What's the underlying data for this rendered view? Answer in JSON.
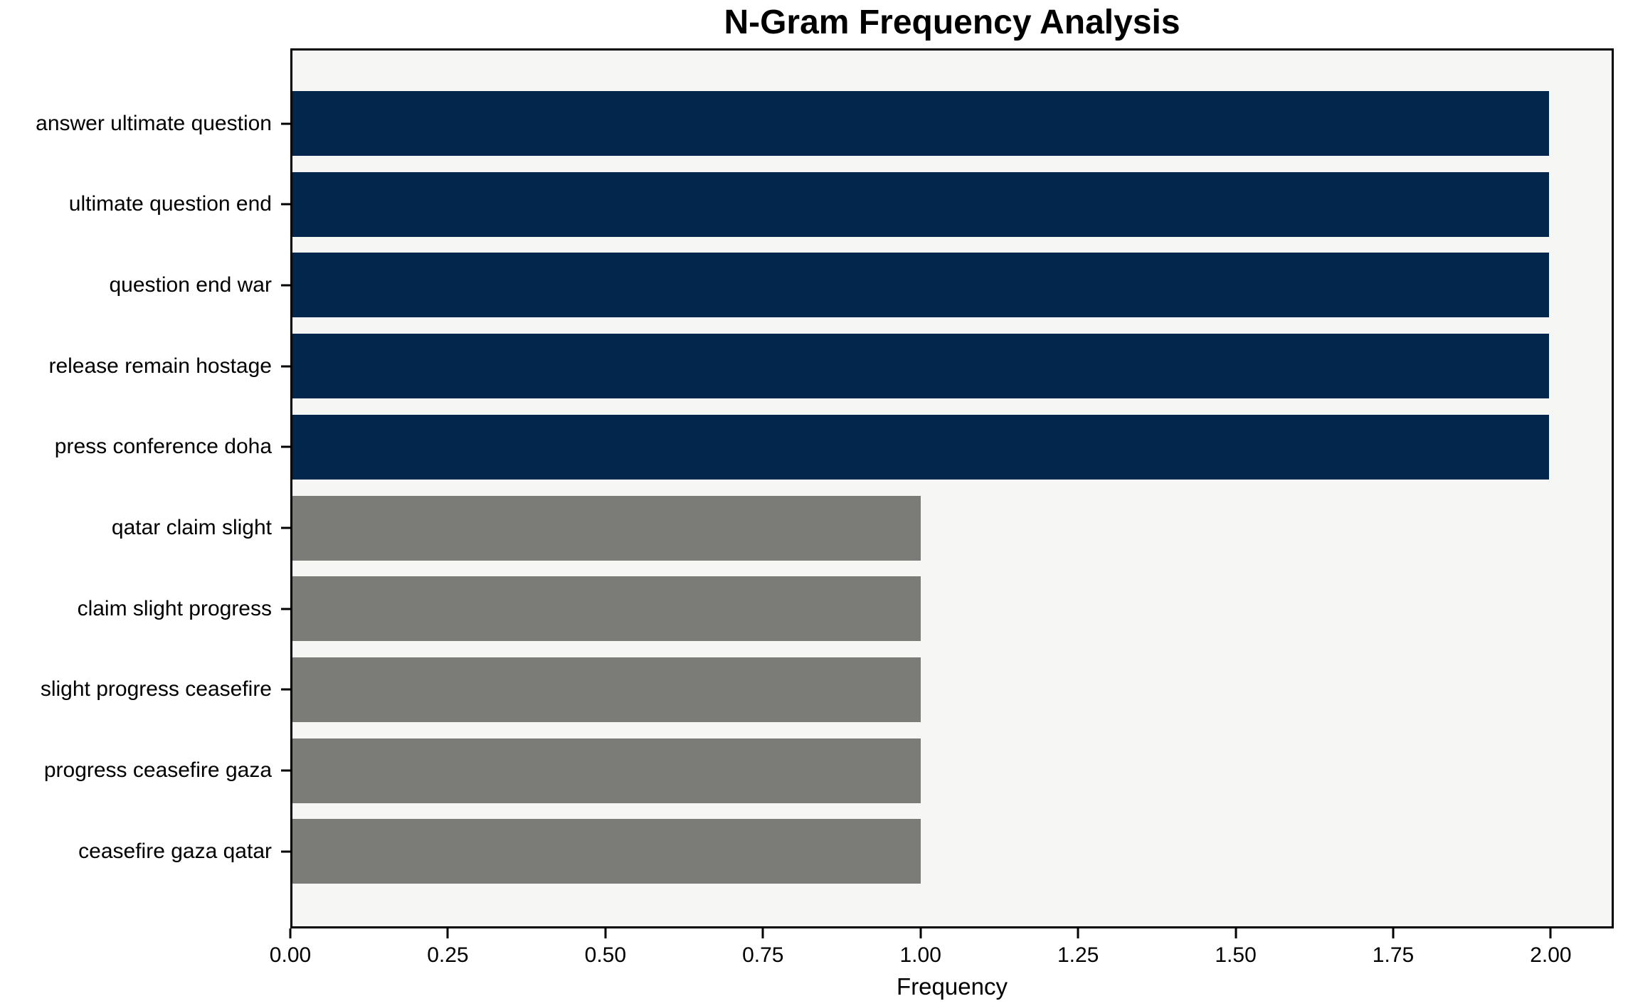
{
  "chart_data": {
    "type": "bar",
    "orientation": "horizontal",
    "title": "N-Gram Frequency Analysis",
    "xlabel": "Frequency",
    "ylabel": "",
    "categories": [
      "answer ultimate question",
      "ultimate question end",
      "question end war",
      "release remain hostage",
      "press conference doha",
      "qatar claim slight",
      "claim slight progress",
      "slight progress ceasefire",
      "progress ceasefire gaza",
      "ceasefire gaza qatar"
    ],
    "values": [
      2,
      2,
      2,
      2,
      2,
      1,
      1,
      1,
      1,
      1
    ],
    "bar_colors": [
      "#03264d",
      "#03264d",
      "#03264d",
      "#03264d",
      "#03264d",
      "#7b7b78",
      "#7b7b78",
      "#7b7b78",
      "#7b7b78",
      "#7b7b78"
    ],
    "xlim": [
      0,
      2.1
    ],
    "xticks": [
      0,
      0.25,
      0.5,
      0.75,
      1.0,
      1.25,
      1.5,
      1.75,
      2.0
    ],
    "xtick_labels": [
      "0.00",
      "0.25",
      "0.50",
      "0.75",
      "1.00",
      "1.25",
      "1.50",
      "1.75",
      "2.00"
    ],
    "grid": false,
    "legend": null,
    "colors": {
      "high_freq_bar": "#03264d",
      "low_freq_bar": "#7b7b78",
      "plot_background": "#f6f6f5",
      "figure_background": "#ffffff",
      "spine": "#000000",
      "text": "#000000"
    }
  }
}
